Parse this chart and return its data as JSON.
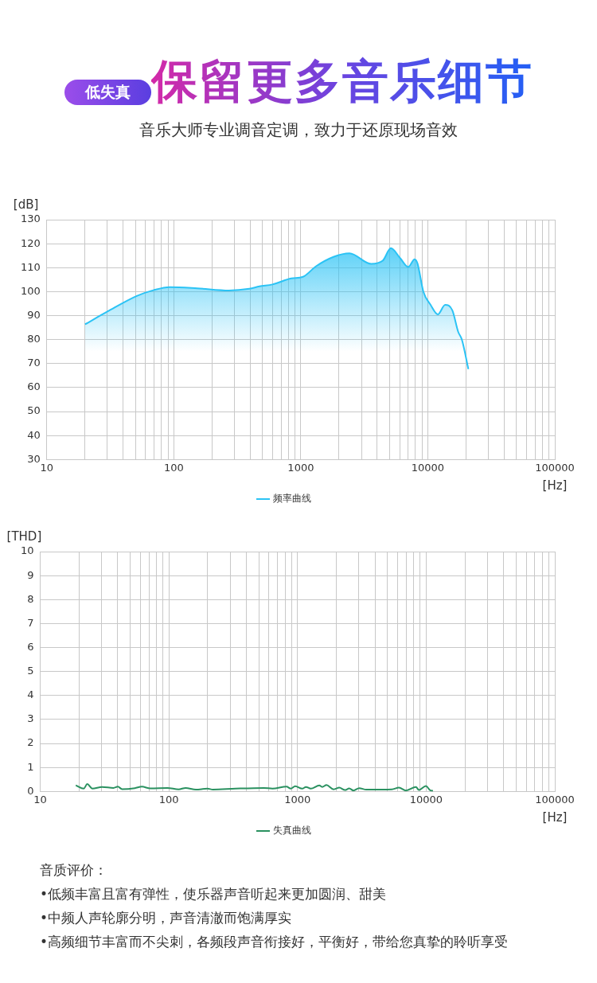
{
  "chart_data": [
    {
      "type": "area",
      "annotations": [
        "低失真"
      ],
      "title": "保留更多音乐细节",
      "subtitle": "音乐大师专业调音定调，致力于还原现场音效",
      "xlabel": "[Hz]",
      "ylabel": "[dB]",
      "xlim": [
        10,
        100000
      ],
      "ylim": [
        30,
        130
      ],
      "xticks": [
        10,
        {
          "value": 20,
          "label": null
        },
        {
          "value": 30,
          "label": null
        },
        {
          "value": 40,
          "label": null
        },
        {
          "value": 50,
          "label": null
        },
        {
          "value": 60,
          "label": null
        },
        {
          "value": 70,
          "label": null
        },
        {
          "value": 80,
          "label": null
        },
        {
          "value": 90,
          "label": null
        },
        100,
        {
          "value": 200,
          "label": null
        },
        {
          "value": 300,
          "label": null
        },
        {
          "value": 400,
          "label": null
        },
        {
          "value": 500,
          "label": null
        },
        {
          "value": 600,
          "label": null
        },
        {
          "value": 700,
          "label": null
        },
        {
          "value": 800,
          "label": null
        },
        {
          "value": 900,
          "label": null
        },
        1000,
        {
          "value": 2000,
          "label": null
        },
        {
          "value": 3000,
          "label": null
        },
        {
          "value": 4000,
          "label": null
        },
        {
          "value": 5000,
          "label": null
        },
        {
          "value": 6000,
          "label": null
        },
        {
          "value": 7000,
          "label": null
        },
        {
          "value": 8000,
          "label": null
        },
        {
          "value": 9000,
          "label": null
        },
        10000,
        {
          "value": 20000,
          "label": null
        },
        {
          "value": 30000,
          "label": null
        },
        {
          "value": 40000,
          "label": null
        },
        {
          "value": 50000,
          "label": null
        },
        {
          "value": 60000,
          "label": null
        },
        {
          "value": 70000,
          "label": null
        },
        {
          "value": 80000,
          "label": null
        },
        {
          "value": 90000,
          "label": null
        },
        100000
      ],
      "yticks": [
        30,
        40,
        50,
        60,
        70,
        80,
        90,
        100,
        110,
        120,
        130
      ],
      "log": "x",
      "grid": true,
      "legend": "bottom",
      "marker": "none",
      "line_style": "solid",
      "series": [
        {
          "name": "频率曲线",
          "color": "#2bc3f5",
          "x": [
            20,
            30,
            51,
            69,
            93,
            153,
            272,
            393,
            472,
            598,
            842,
            1040,
            1318,
            1807,
            2414,
            3583,
            4415,
            5117,
            6054,
            7015,
            7880,
            8300,
            9228,
            10520,
            12000,
            13690,
            15600,
            17330,
            18570,
            20860
          ],
          "values": [
            86.4,
            91.7,
            98.2,
            100.6,
            101.9,
            101.4,
            100.5,
            101.2,
            102.2,
            103.0,
            105.5,
            106.2,
            110.6,
            114.5,
            116.0,
            111.6,
            112.9,
            118.1,
            114.0,
            110.3,
            113.5,
            111.7,
            100.0,
            94.5,
            90.5,
            94.5,
            92.2,
            83.3,
            79.9,
            67.7
          ]
        }
      ]
    },
    {
      "type": "line",
      "xlabel": "[Hz]",
      "ylabel": "[THD]",
      "annotations": [
        "音质评价：",
        "•低频丰富且富有弹性，使乐器声音听起来更加圆润、甜美",
        "•中频人声轮廓分明，声音清澈而饱满厚实",
        "•高频细节丰富而不尖刺，各频段声音衔接好，平衡好，带给您真挚的聆听享受"
      ],
      "xlim": [
        10,
        100000
      ],
      "ylim": [
        0,
        10
      ],
      "xticks": [
        10,
        {
          "value": 20,
          "label": null
        },
        {
          "value": 30,
          "label": null
        },
        {
          "value": 40,
          "label": null
        },
        {
          "value": 50,
          "label": null
        },
        {
          "value": 60,
          "label": null
        },
        {
          "value": 70,
          "label": null
        },
        {
          "value": 80,
          "label": null
        },
        {
          "value": 90,
          "label": null
        },
        100,
        {
          "value": 200,
          "label": null
        },
        {
          "value": 300,
          "label": null
        },
        {
          "value": 400,
          "label": null
        },
        {
          "value": 500,
          "label": null
        },
        {
          "value": 600,
          "label": null
        },
        {
          "value": 700,
          "label": null
        },
        {
          "value": 800,
          "label": null
        },
        {
          "value": 900,
          "label": null
        },
        1000,
        {
          "value": 2000,
          "label": null
        },
        {
          "value": 3000,
          "label": null
        },
        {
          "value": 4000,
          "label": null
        },
        {
          "value": 5000,
          "label": null
        },
        {
          "value": 6000,
          "label": null
        },
        {
          "value": 7000,
          "label": null
        },
        {
          "value": 8000,
          "label": null
        },
        {
          "value": 9000,
          "label": null
        },
        10000,
        {
          "value": 20000,
          "label": null
        },
        {
          "value": 30000,
          "label": null
        },
        {
          "value": 40000,
          "label": null
        },
        {
          "value": 50000,
          "label": null
        },
        {
          "value": 60000,
          "label": null
        },
        {
          "value": 70000,
          "label": null
        },
        {
          "value": 80000,
          "label": null
        },
        {
          "value": 90000,
          "label": null
        },
        100000
      ],
      "yticks": [
        0,
        1,
        2,
        3,
        4,
        5,
        6,
        7,
        8,
        9,
        10
      ],
      "log": "x",
      "grid": true,
      "legend": "bottom",
      "marker": "none",
      "line_style": "solid",
      "series": [
        {
          "name": "失真曲线",
          "color": "#2a9160",
          "x": [
            18.9,
            21.8,
            23.2,
            25.4,
            30.3,
            37.1,
            40.1,
            43.3,
            54.4,
            61.7,
            71.8,
            97.5,
            119,
            135,
            162,
            199,
            220,
            330,
            548,
            638,
            822,
            887,
            959,
            1089,
            1163,
            1268,
            1478,
            1556,
            1679,
            1906,
            2112,
            2339,
            2524,
            2723,
            3013,
            3425,
            5410,
            6140,
            6970,
            8330,
            8770,
            9960,
            10740,
            11300
          ],
          "values": [
            0.26,
            0.12,
            0.31,
            0.12,
            0.19,
            0.15,
            0.2,
            0.1,
            0.14,
            0.2,
            0.13,
            0.15,
            0.09,
            0.15,
            0.08,
            0.12,
            0.08,
            0.12,
            0.15,
            0.12,
            0.2,
            0.12,
            0.22,
            0.12,
            0.19,
            0.12,
            0.25,
            0.19,
            0.27,
            0.09,
            0.16,
            0.06,
            0.13,
            0.04,
            0.14,
            0.08,
            0.09,
            0.16,
            0.04,
            0.19,
            0.06,
            0.23,
            0.05,
            0.03
          ]
        }
      ]
    }
  ]
}
